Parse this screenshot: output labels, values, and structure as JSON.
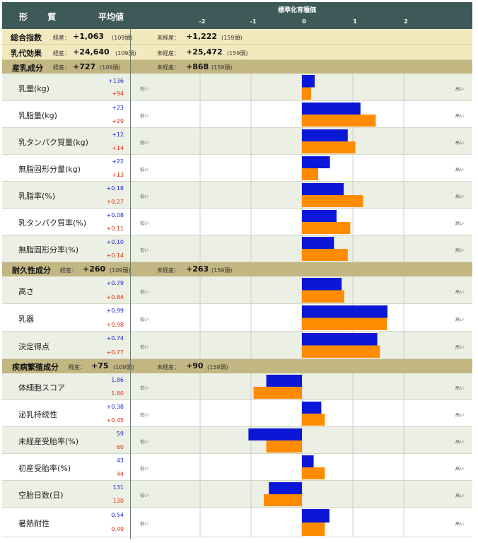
{
  "header": {
    "col_trait": "形 質",
    "col_avg": "平均値",
    "axis_title": "標準化育種価",
    "ticks": [
      "-2",
      "-1",
      "0",
      "1",
      "2"
    ]
  },
  "summary": [
    {
      "label": "総合指数",
      "l1": "経産：",
      "v1": "+1,063",
      "c1": "(109頭)",
      "l2": "未経産：",
      "v2": "+1,222",
      "c2": "(159頭)"
    },
    {
      "label": "乳代効果",
      "l1": "経産：",
      "v1": "+24,640",
      "c1": "(109頭)",
      "l2": "未経産：",
      "v2": "+25,472",
      "c2": "(159頭)"
    }
  ],
  "sections": [
    {
      "label": "産乳成分",
      "l1": "経産：",
      "v1": "+727",
      "c1": "(109頭)",
      "l2": "未経産：",
      "v2": "+868",
      "c2": "(159頭)"
    },
    {
      "label": "耐久性成分",
      "l1": "経産：",
      "v1": "+260",
      "c1": "(109頭)",
      "l2": "未経産：",
      "v2": "+263",
      "c2": "(159頭)"
    },
    {
      "label": "疾病繁殖成分",
      "l1": "経産：",
      "v1": "+75",
      "c1": "(109頭)",
      "l2": "未経産：",
      "v2": "+90",
      "c2": "(159頭)"
    }
  ],
  "low_label": "低い",
  "high_label": "高い",
  "traits": [
    {
      "name": "乳量(kg)",
      "v1": "+136",
      "v2": "+94"
    },
    {
      "name": "乳脂量(kg)",
      "v1": "+23",
      "v2": "+29"
    },
    {
      "name": "乳タンパク質量(kg)",
      "v1": "+12",
      "v2": "+14"
    },
    {
      "name": "無脂固形分量(kg)",
      "v1": "+22",
      "v2": "+13"
    },
    {
      "name": "乳脂率(%)",
      "v1": "+0.18",
      "v2": "+0.27"
    },
    {
      "name": "乳タンパク質率(%)",
      "v1": "+0.08",
      "v2": "+0.11"
    },
    {
      "name": "無脂固形分率(%)",
      "v1": "+0.10",
      "v2": "+0.14"
    },
    {
      "name": "高さ",
      "v1": "+0.79",
      "v2": "+0.84"
    },
    {
      "name": "乳器",
      "v1": "+0.99",
      "v2": "+0.98"
    },
    {
      "name": "決定得点",
      "v1": "+0.74",
      "v2": "+0.77"
    },
    {
      "name": "体細胞スコア",
      "v1": "1.86",
      "v2": "1.80"
    },
    {
      "name": "泌乳持続性",
      "v1": "+0.38",
      "v2": "+0.45"
    },
    {
      "name": "未経産受胎率(%)",
      "v1": "59",
      "v2": "60"
    },
    {
      "name": "初産受胎率(%)",
      "v1": "43",
      "v2": "44"
    },
    {
      "name": "空胎日数(日)",
      "v1": "131",
      "v2": "130"
    },
    {
      "name": "暑熱耐性",
      "v1": "0.54",
      "v2": "0.49"
    }
  ],
  "colors": {
    "header": "#3d5a58",
    "section": "#c2b682",
    "summary": "#f3e9bf",
    "row_alt": "#ecefe3",
    "bar_series1": "#0a17d6",
    "bar_series2": "#ff8c00",
    "value_series1": "#1a2ad0",
    "value_series2": "#e03010",
    "grid": "#cccccc"
  },
  "chart_data": {
    "type": "bar",
    "orientation": "horizontal",
    "xlim": [
      -2.35,
      2.35
    ],
    "x_ticks": [
      -2,
      -1,
      0,
      1,
      2
    ],
    "grid": true,
    "categories": [
      "乳量(kg)",
      "乳脂量(kg)",
      "乳タンパク質量(kg)",
      "無脂固形分量(kg)",
      "乳脂率(%)",
      "乳タンパク質率(%)",
      "無脂固形分率(%)",
      "高さ",
      "乳器",
      "決定得点",
      "体細胞スコア",
      "泌乳持続性",
      "未経産受胎率(%)",
      "初産受胎率(%)",
      "空胎日数(日)",
      "暑熱耐性"
    ],
    "series": [
      {
        "values": [
          0.25,
          1.15,
          0.9,
          0.55,
          0.82,
          0.68,
          0.63,
          0.78,
          1.68,
          1.48,
          -0.7,
          0.38,
          -1.05,
          0.23,
          -0.65,
          0.54
        ]
      },
      {
        "values": [
          0.18,
          1.45,
          1.05,
          0.32,
          1.2,
          0.95,
          0.9,
          0.83,
          1.67,
          1.53,
          -0.95,
          0.45,
          -0.7,
          0.45,
          -0.75,
          0.45
        ]
      }
    ]
  }
}
